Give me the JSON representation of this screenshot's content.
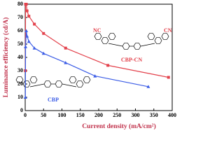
{
  "chart_data": {
    "type": "line",
    "x_label": "Current density (mA/cm²)",
    "y_label": "Luminance efficiency (cd/A)",
    "xlim": [
      0,
      400
    ],
    "xticks": [
      0,
      50,
      100,
      150,
      200,
      250,
      300,
      350,
      400
    ],
    "ylim": [
      0,
      80
    ],
    "yticks": [
      0,
      10,
      20,
      30,
      40,
      50,
      60,
      70,
      80
    ],
    "series": [
      {
        "name": "CBP-CN",
        "color": "#e3424c",
        "marker": "square",
        "x": [
          0.5,
          1,
          3,
          5,
          10,
          25,
          50,
          110,
          225,
          390
        ],
        "values": [
          30,
          80,
          80,
          75,
          71,
          65,
          58,
          47,
          34,
          25
        ]
      },
      {
        "name": "CBP",
        "color": "#3d5ee6",
        "marker": "triangle",
        "x": [
          0.5,
          1,
          3,
          5,
          10,
          25,
          50,
          110,
          190,
          335
        ],
        "values": [
          10,
          48,
          60,
          56,
          52,
          47,
          43,
          36,
          26,
          18
        ]
      }
    ],
    "annotations": [
      "NC",
      "CN"
    ]
  }
}
